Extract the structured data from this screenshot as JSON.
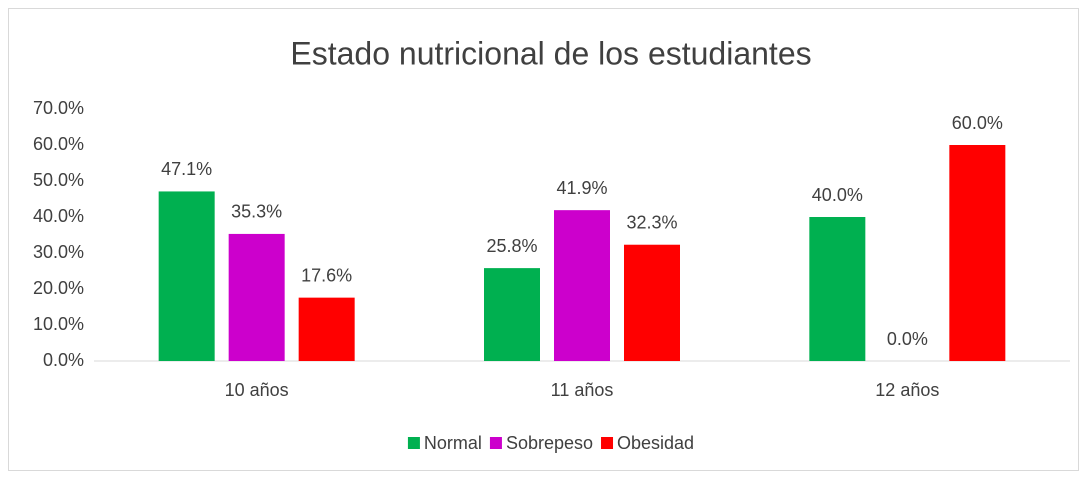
{
  "chart_data": {
    "type": "bar",
    "title": "Estado nutricional de los estudiantes",
    "categories": [
      "10 años",
      "11 años",
      "12 años"
    ],
    "series": [
      {
        "name": "Normal",
        "color": "#00b050",
        "values": [
          47.1,
          25.8,
          40.0
        ],
        "value_labels": [
          "47.1%",
          "25.8%",
          "40.0%"
        ]
      },
      {
        "name": "Sobrepeso",
        "color": "#cc00cc",
        "values": [
          35.3,
          41.9,
          0.0
        ],
        "value_labels": [
          "35.3%",
          "41.9%",
          "0.0%"
        ]
      },
      {
        "name": "Obesidad",
        "color": "#ff0000",
        "values": [
          17.6,
          32.3,
          60.0
        ],
        "value_labels": [
          "17.6%",
          "32.3%",
          "60.0%"
        ]
      }
    ],
    "ylim": [
      0,
      70
    ],
    "yticks": [
      {
        "value": 0,
        "label": "0.0%"
      },
      {
        "value": 10,
        "label": "10.0%"
      },
      {
        "value": 20,
        "label": "20.0%"
      },
      {
        "value": 30,
        "label": "30.0%"
      },
      {
        "value": 40,
        "label": "40.0%"
      },
      {
        "value": 50,
        "label": "50.0%"
      },
      {
        "value": 60,
        "label": "60.0%"
      },
      {
        "value": 70,
        "label": "70.0%"
      }
    ],
    "grid": false,
    "legend": "bottom"
  }
}
